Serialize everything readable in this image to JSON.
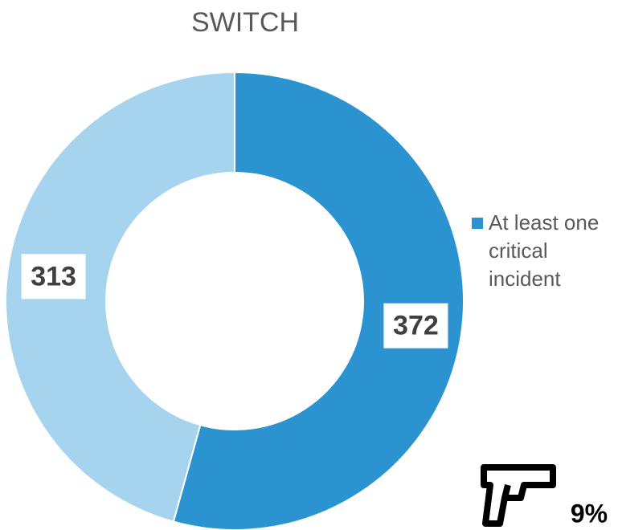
{
  "chart_data": {
    "type": "donut",
    "title": "SWITCH",
    "categories": [
      "At least one critical incident",
      null
    ],
    "values": [
      372,
      313
    ],
    "colors": [
      "#2a93d0",
      "#a6d3ee"
    ],
    "legend": "right",
    "annotation": "9%"
  }
}
